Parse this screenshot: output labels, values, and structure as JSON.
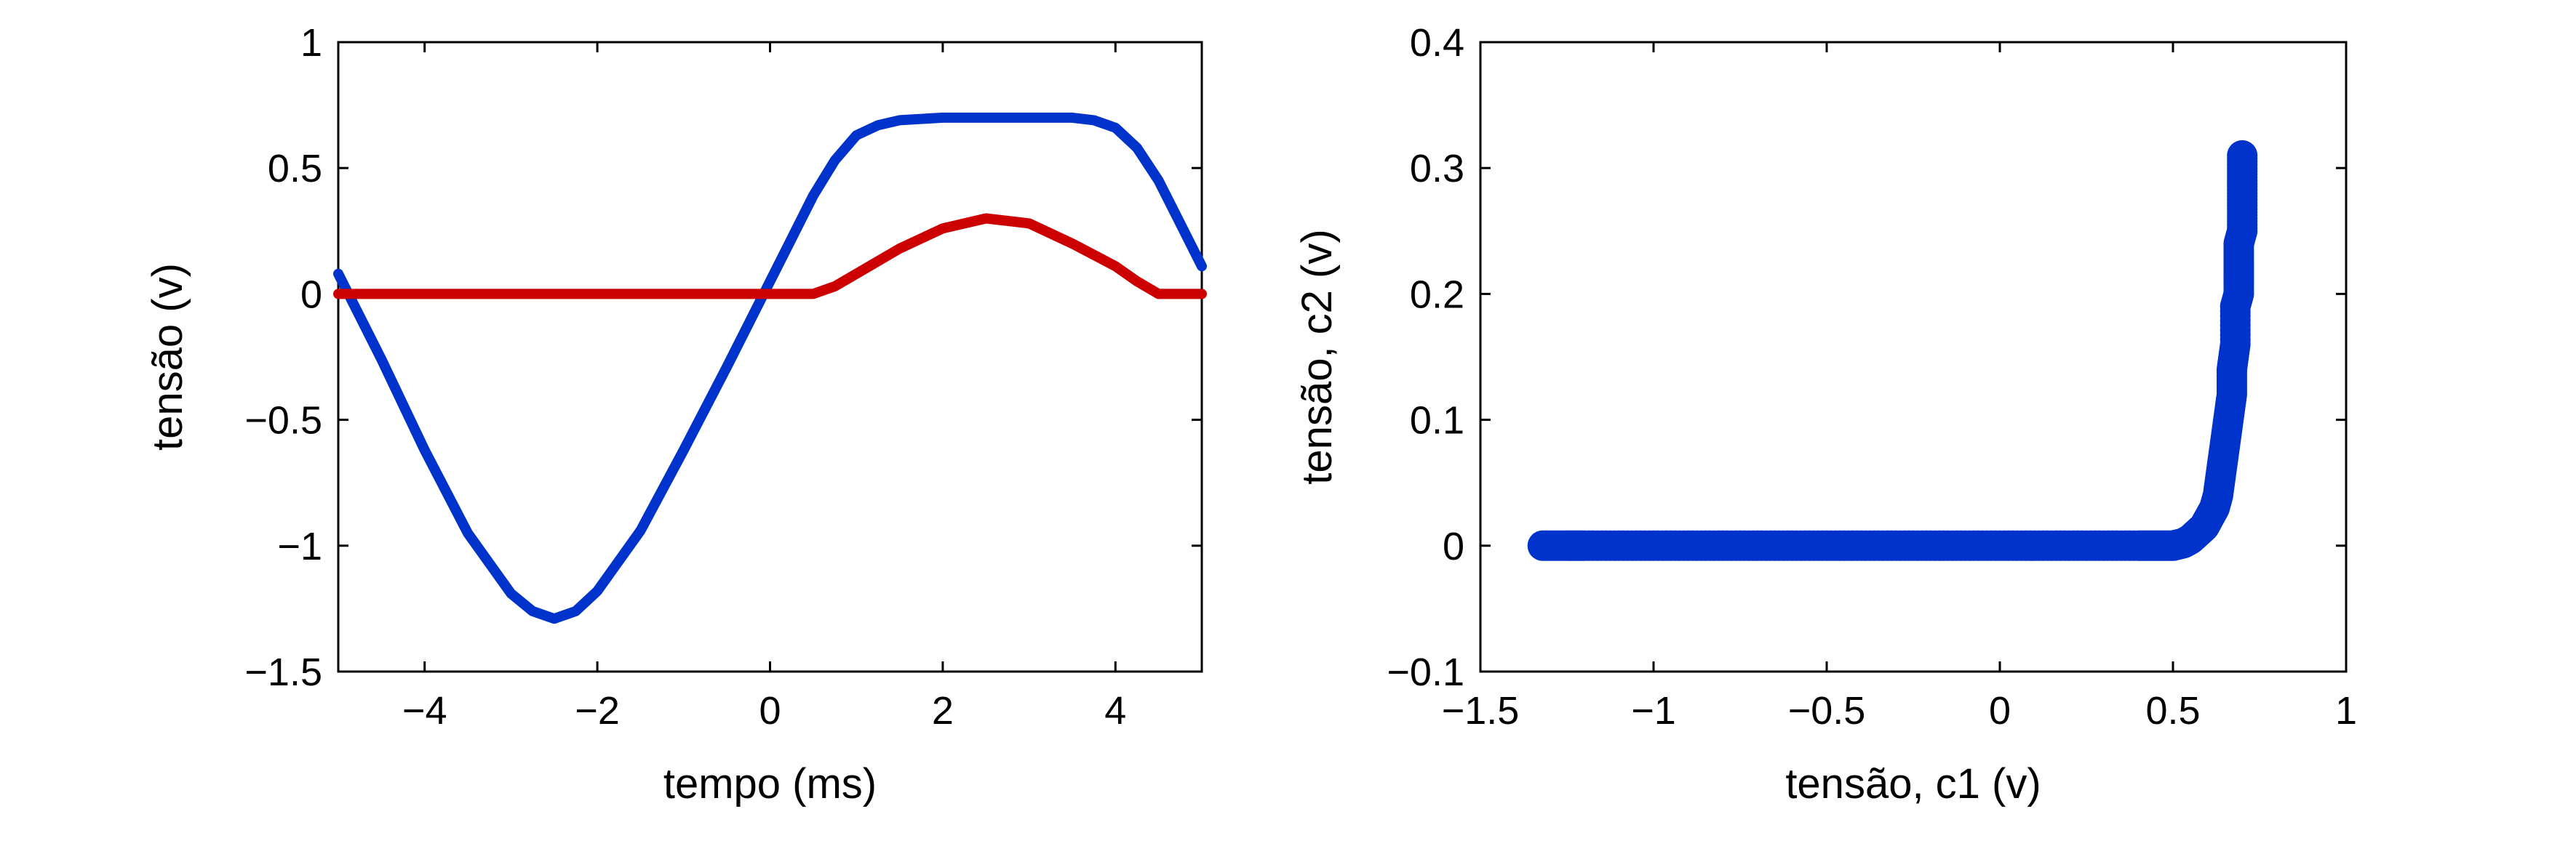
{
  "chart_data": [
    {
      "type": "line",
      "title": "",
      "xlabel": "tempo (ms)",
      "ylabel": "tensão (v)",
      "xlim": [
        -5,
        5
      ],
      "ylim": [
        -1.5,
        1
      ],
      "xticks": [
        -4,
        -2,
        0,
        2,
        4
      ],
      "xtick_labels": [
        "−4",
        "−2",
        "0",
        "2",
        "4"
      ],
      "yticks": [
        1,
        0.5,
        0,
        -0.5,
        -1,
        -1.5
      ],
      "ytick_labels": [
        "1",
        "0.5",
        "0",
        "−0.5",
        "−1",
        "−1.5"
      ],
      "grid": false,
      "series": [
        {
          "color": "#0033cc",
          "x": [
            -5,
            -4.5,
            -4,
            -3.5,
            -3,
            -2.75,
            -2.5,
            -2.25,
            -2,
            -1.5,
            -1,
            -0.5,
            0,
            0.25,
            0.5,
            0.75,
            1,
            1.25,
            1.5,
            2,
            2.5,
            3,
            3.5,
            3.75,
            4,
            4.25,
            4.5,
            4.75,
            5
          ],
          "y": [
            0.08,
            -0.26,
            -0.62,
            -0.95,
            -1.19,
            -1.26,
            -1.29,
            -1.26,
            -1.18,
            -0.94,
            -0.62,
            -0.29,
            0.05,
            0.22,
            0.39,
            0.53,
            0.63,
            0.67,
            0.69,
            0.7,
            0.7,
            0.7,
            0.7,
            0.69,
            0.66,
            0.58,
            0.45,
            0.28,
            0.11
          ]
        },
        {
          "color": "#cc0000",
          "x": [
            -5,
            -4,
            -3,
            -2,
            -1,
            0,
            0.5,
            0.75,
            1,
            1.5,
            2,
            2.5,
            3,
            3.5,
            4,
            4.25,
            4.5,
            4.75,
            5
          ],
          "y": [
            0,
            0,
            0,
            0,
            0,
            0,
            0,
            0.03,
            0.08,
            0.18,
            0.26,
            0.3,
            0.28,
            0.2,
            0.11,
            0.05,
            0,
            0,
            0
          ]
        }
      ]
    },
    {
      "type": "scatter",
      "title": "",
      "xlabel": "tensão, c1 (v)",
      "ylabel": "tensão, c2 (v)",
      "xlim": [
        -1.5,
        1
      ],
      "ylim": [
        -0.1,
        0.4
      ],
      "xticks": [
        -1.5,
        -1,
        -0.5,
        0,
        0.5,
        1
      ],
      "xtick_labels": [
        "−1.5",
        "−1",
        "−0.5",
        "0",
        "0.5",
        "1"
      ],
      "yticks": [
        0.4,
        0.3,
        0.2,
        0.1,
        0,
        -0.1
      ],
      "ytick_labels": [
        "0.4",
        "0.3",
        "0.2",
        "0.1",
        "0",
        "−0.1"
      ],
      "grid": false,
      "color": "#0033cc",
      "x": [
        -1.32,
        -1.25,
        -1.2,
        -1.1,
        -1.0,
        -0.9,
        -0.8,
        -0.7,
        -0.6,
        -0.5,
        -0.4,
        -0.3,
        -0.2,
        -0.1,
        0.0,
        0.1,
        0.2,
        0.3,
        0.4,
        0.45,
        0.5,
        0.53,
        0.55,
        0.57,
        0.59,
        0.6,
        0.62,
        0.63,
        0.64,
        0.65,
        0.66,
        0.67,
        0.67,
        0.68,
        0.68,
        0.69,
        0.69,
        0.69,
        0.7,
        0.7,
        0.7,
        0.7
      ],
      "y": [
        0,
        0,
        0,
        0,
        0,
        0,
        0,
        0,
        0,
        0,
        0,
        0,
        0,
        0,
        0,
        0,
        0,
        0,
        0,
        0,
        0,
        0.002,
        0.005,
        0.01,
        0.015,
        0.02,
        0.03,
        0.04,
        0.06,
        0.08,
        0.1,
        0.12,
        0.14,
        0.16,
        0.19,
        0.2,
        0.22,
        0.24,
        0.25,
        0.27,
        0.29,
        0.31
      ]
    }
  ]
}
